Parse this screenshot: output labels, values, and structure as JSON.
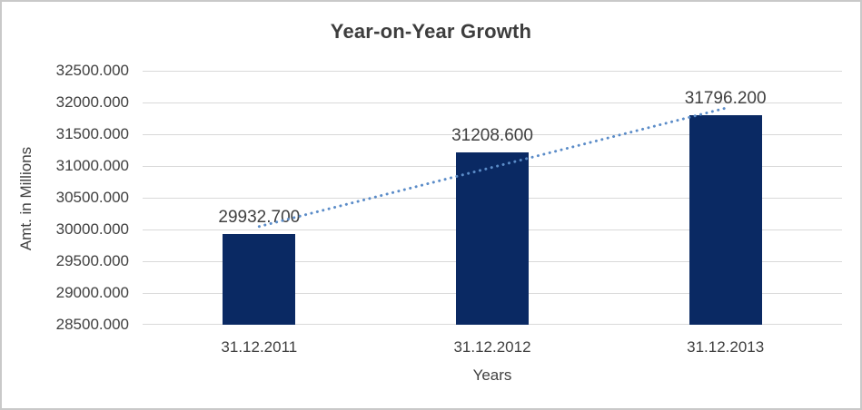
{
  "chart_data": {
    "type": "bar",
    "title": "Year-on-Year Growth",
    "xlabel": "Years",
    "ylabel": "Amt. in Millions",
    "categories": [
      "31.12.2011",
      "31.12.2012",
      "31.12.2013"
    ],
    "values": [
      29932.7,
      31208.6,
      31796.2
    ],
    "value_labels": [
      "29932.700",
      "31208.600",
      "31796.200"
    ],
    "y_tick_labels": [
      "32500.000",
      "32000.000",
      "31500.000",
      "31000.000",
      "30500.000",
      "30000.000",
      "29500.000",
      "29000.000",
      "28500.000"
    ],
    "ylim": [
      28500,
      32500
    ],
    "y_tick_step": 500,
    "grid": true,
    "legend": false,
    "trendline": {
      "type": "linear",
      "style": "dotted"
    },
    "colors": {
      "bar": "#0a2963",
      "trendline": "#5b8cc8",
      "gridline": "#d9d9d9",
      "text": "#404040",
      "title": "#3d3d3d",
      "frame_border": "#c9c9c9",
      "background": "#ffffff"
    }
  }
}
